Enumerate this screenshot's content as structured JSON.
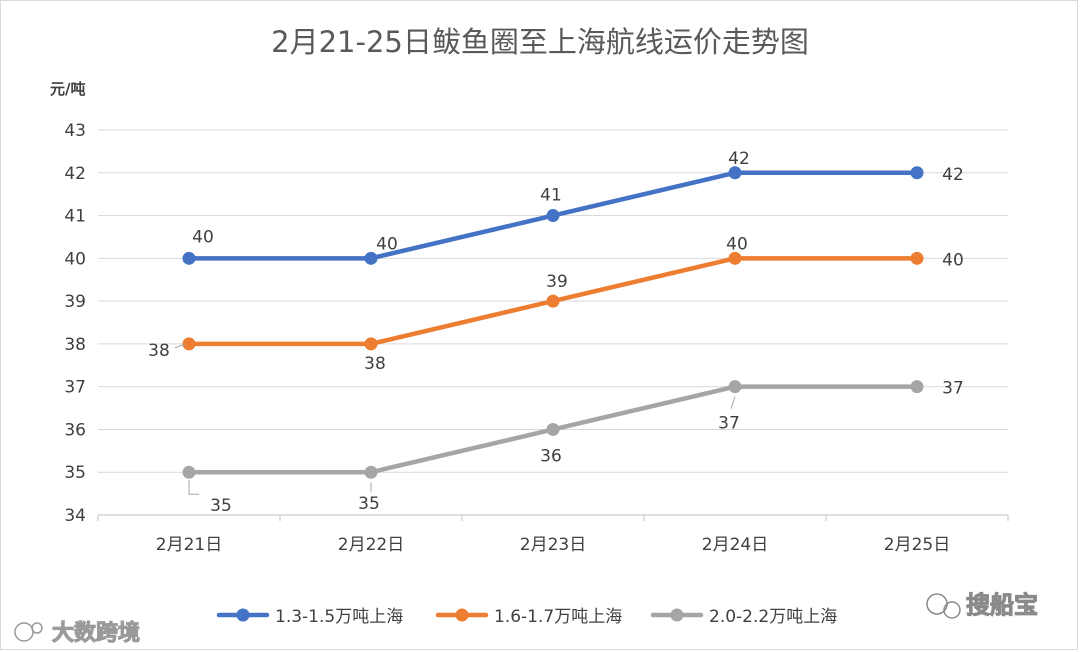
{
  "chart_data": {
    "type": "line",
    "title": "2月21-25日鲅鱼圈至上海航线运价走势图",
    "ylabel": "元/吨",
    "xlabel": "",
    "categories": [
      "2月21日",
      "2月22日",
      "2月23日",
      "2月24日",
      "2月25日"
    ],
    "ylim": [
      34,
      43
    ],
    "yticks": [
      34,
      35,
      36,
      37,
      38,
      39,
      40,
      41,
      42,
      43
    ],
    "grid": true,
    "legend_position": "bottom",
    "series": [
      {
        "name": "1.3-1.5万吨上海",
        "color": "#4472c4",
        "values": [
          40,
          40,
          41,
          42,
          42
        ]
      },
      {
        "name": "1.6-1.7万吨上海",
        "color": "#ed7d31",
        "values": [
          38,
          38,
          39,
          40,
          40
        ]
      },
      {
        "name": "2.0-2.2万吨上海",
        "color": "#a5a5a5",
        "values": [
          35,
          35,
          36,
          37,
          37
        ]
      }
    ]
  },
  "watermarks": {
    "left": "大数跨境",
    "right": "搜船宝"
  }
}
